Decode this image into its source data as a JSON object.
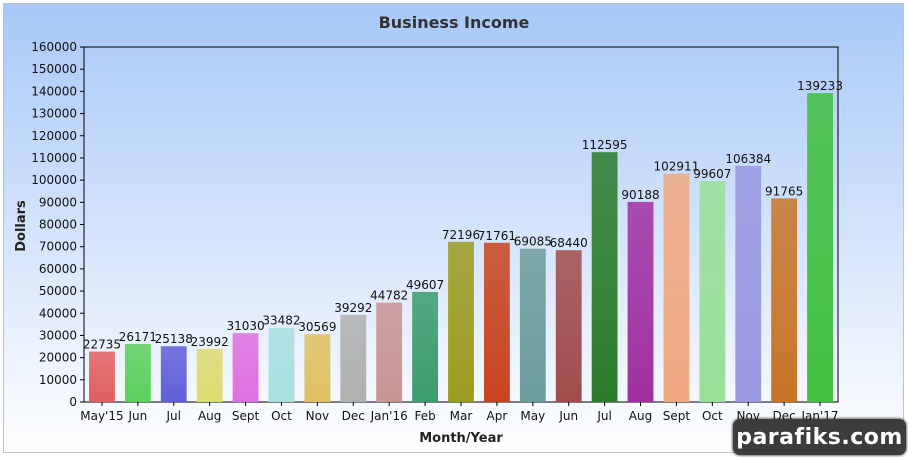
{
  "chart_data": {
    "type": "bar",
    "title": "Business Income",
    "xlabel": "Month/Year",
    "ylabel": "Dollars",
    "ylim": [
      0,
      160000
    ],
    "ytick_step": 10000,
    "grid": false,
    "categories": [
      "May'15",
      "Jun",
      "Jul",
      "Aug",
      "Sept",
      "Oct",
      "Nov",
      "Dec",
      "Jan'16",
      "Feb",
      "Mar",
      "Apr",
      "May",
      "Jun",
      "Jul",
      "Aug",
      "Sept",
      "Oct",
      "Nov",
      "Dec",
      "Jan'17"
    ],
    "values": [
      22735,
      26171,
      25138,
      23992,
      31030,
      33482,
      30569,
      39292,
      44782,
      49607,
      72196,
      71761,
      69085,
      68440,
      112595,
      90188,
      102911,
      99607,
      106384,
      91765,
      139233
    ],
    "bar_colors": [
      "#e06060",
      "#5cd05c",
      "#6060d8",
      "#dcdc70",
      "#e070e0",
      "#a8e0e0",
      "#e0c060",
      "#b0b0b0",
      "#c89494",
      "#3c9c6c",
      "#9c9c20",
      "#c84420",
      "#6c9c9c",
      "#a04c4c",
      "#2c7c2c",
      "#a030a0",
      "#f0a880",
      "#98e098",
      "#9898e0",
      "#c87428",
      "#40c040"
    ],
    "background": {
      "top": "#a8c8f8",
      "bottom": "#ffffff"
    }
  },
  "watermark": "parafiks.com"
}
